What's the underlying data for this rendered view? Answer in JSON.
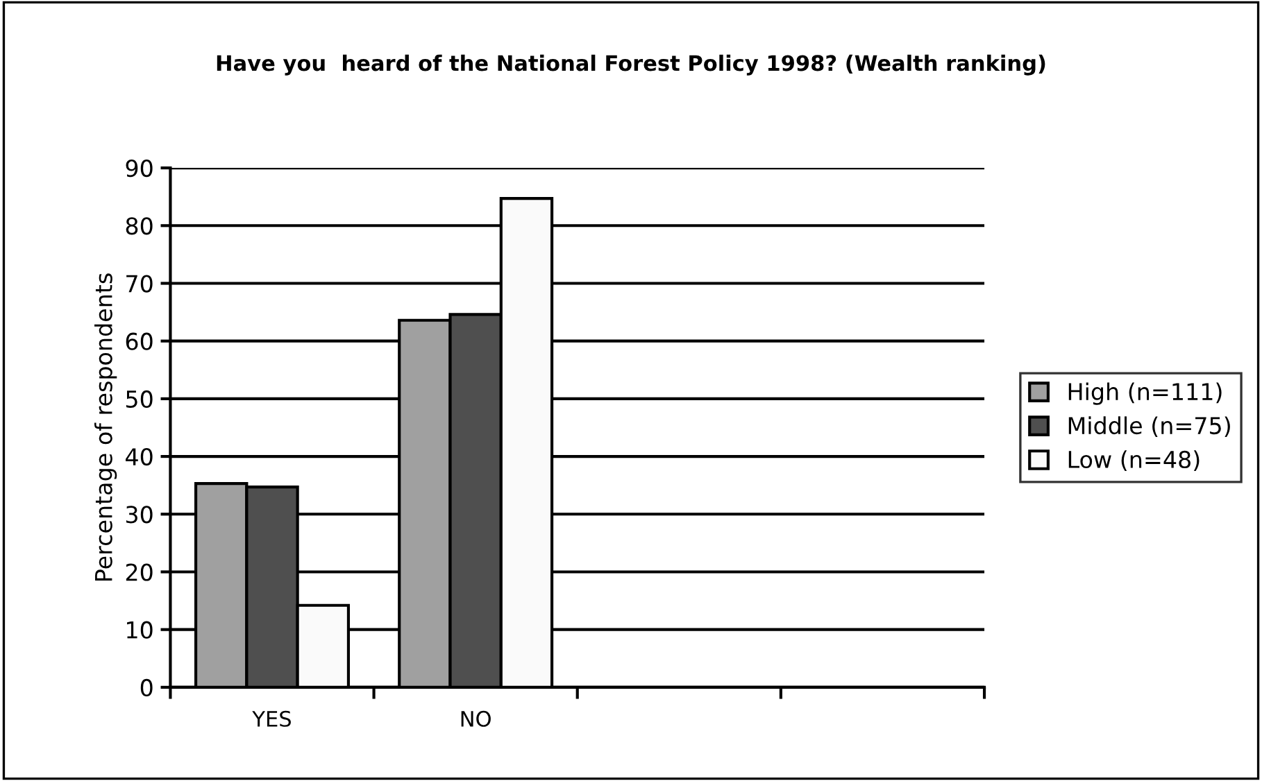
{
  "chart_data": {
    "type": "bar",
    "title": "Have you  heard of the National Forest Policy 1998? (Wealth ranking)",
    "ylabel": "Percentage of respondents",
    "categories": [
      "YES",
      "NO",
      null,
      null
    ],
    "series": [
      {
        "name": "High (n=111)",
        "color": "#a0a0a0",
        "values": [
          35.3,
          63.6,
          null,
          null
        ]
      },
      {
        "name": "Middle (n=75)",
        "color": "#4f4f4f",
        "values": [
          34.7,
          64.6,
          null,
          null
        ]
      },
      {
        "name": "Low (n=48)",
        "color": "#fafafa",
        "values": [
          14.2,
          84.7,
          null,
          null
        ]
      }
    ],
    "ylim": [
      0,
      90
    ],
    "yticks": [
      0,
      10,
      20,
      30,
      40,
      50,
      60,
      70,
      80,
      90
    ],
    "grid": "y",
    "legend": "right"
  }
}
